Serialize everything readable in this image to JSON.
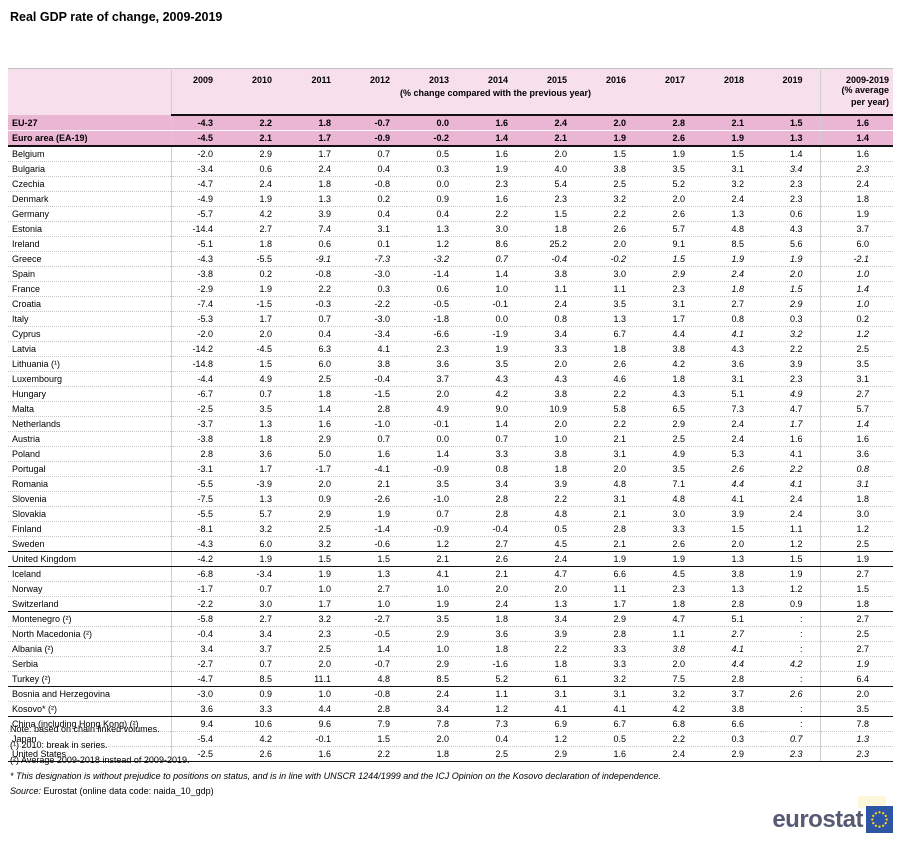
{
  "title": "Real GDP rate of change, 2009-2019",
  "chart_data": {
    "type": "table",
    "title": "Real GDP rate of change, 2009-2019",
    "unit_note": "(% change compared with the previous year)",
    "avg_header": "2009-2019",
    "avg_subheader": "(% average\nper year)",
    "years": [
      "2009",
      "2010",
      "2011",
      "2012",
      "2013",
      "2014",
      "2015",
      "2016",
      "2017",
      "2018",
      "2019"
    ],
    "rows": [
      {
        "name": "EU-27",
        "values": [
          "-4.3",
          "2.2",
          "1.8",
          "-0.7",
          "0.0",
          "1.6",
          "2.4",
          "2.0",
          "2.8",
          "2.1",
          "1.5",
          "1.6"
        ],
        "highlight": true,
        "bold": true
      },
      {
        "name": "Euro area (EA-19)",
        "values": [
          "-4.5",
          "2.1",
          "1.7",
          "-0.9",
          "-0.2",
          "1.4",
          "2.1",
          "1.9",
          "2.6",
          "1.9",
          "1.3",
          "1.4"
        ],
        "highlight": true,
        "bold": true,
        "sep_after": true
      },
      {
        "name": "Belgium",
        "values": [
          "-2.0",
          "2.9",
          "1.7",
          "0.7",
          "0.5",
          "1.6",
          "2.0",
          "1.5",
          "1.9",
          "1.5",
          "1.4",
          "1.6"
        ]
      },
      {
        "name": "Bulgaria",
        "values": [
          "-3.4",
          "0.6",
          "2.4",
          "0.4",
          "0.3",
          "1.9",
          "4.0",
          "3.8",
          "3.5",
          "3.1",
          "3.4",
          "2.3"
        ],
        "italics": [
          10,
          11
        ]
      },
      {
        "name": "Czechia",
        "values": [
          "-4.7",
          "2.4",
          "1.8",
          "-0.8",
          "0.0",
          "2.3",
          "5.4",
          "2.5",
          "5.2",
          "3.2",
          "2.3",
          "2.4"
        ]
      },
      {
        "name": "Denmark",
        "values": [
          "-4.9",
          "1.9",
          "1.3",
          "0.2",
          "0.9",
          "1.6",
          "2.3",
          "3.2",
          "2.0",
          "2.4",
          "2.3",
          "1.8"
        ]
      },
      {
        "name": "Germany",
        "values": [
          "-5.7",
          "4.2",
          "3.9",
          "0.4",
          "0.4",
          "2.2",
          "1.5",
          "2.2",
          "2.6",
          "1.3",
          "0.6",
          "1.9"
        ]
      },
      {
        "name": "Estonia",
        "values": [
          "-14.4",
          "2.7",
          "7.4",
          "3.1",
          "1.3",
          "3.0",
          "1.8",
          "2.6",
          "5.7",
          "4.8",
          "4.3",
          "3.7"
        ]
      },
      {
        "name": "Ireland",
        "values": [
          "-5.1",
          "1.8",
          "0.6",
          "0.1",
          "1.2",
          "8.6",
          "25.2",
          "2.0",
          "9.1",
          "8.5",
          "5.6",
          "6.0"
        ]
      },
      {
        "name": "Greece",
        "values": [
          "-4.3",
          "-5.5",
          "-9.1",
          "-7.3",
          "-3.2",
          "0.7",
          "-0.4",
          "-0.2",
          "1.5",
          "1.9",
          "1.9",
          "-2.1"
        ],
        "italics": [
          2,
          3,
          4,
          5,
          6,
          7,
          8,
          9,
          10,
          11
        ]
      },
      {
        "name": "Spain",
        "values": [
          "-3.8",
          "0.2",
          "-0.8",
          "-3.0",
          "-1.4",
          "1.4",
          "3.8",
          "3.0",
          "2.9",
          "2.4",
          "2.0",
          "1.0"
        ],
        "italics": [
          8,
          9,
          10,
          11
        ]
      },
      {
        "name": "France",
        "values": [
          "-2.9",
          "1.9",
          "2.2",
          "0.3",
          "0.6",
          "1.0",
          "1.1",
          "1.1",
          "2.3",
          "1.8",
          "1.5",
          "1.4"
        ],
        "italics": [
          9,
          10,
          11
        ]
      },
      {
        "name": "Croatia",
        "values": [
          "-7.4",
          "-1.5",
          "-0.3",
          "-2.2",
          "-0.5",
          "-0.1",
          "2.4",
          "3.5",
          "3.1",
          "2.7",
          "2.9",
          "1.0"
        ],
        "italics": [
          10,
          11
        ]
      },
      {
        "name": "Italy",
        "values": [
          "-5.3",
          "1.7",
          "0.7",
          "-3.0",
          "-1.8",
          "0.0",
          "0.8",
          "1.3",
          "1.7",
          "0.8",
          "0.3",
          "0.2"
        ]
      },
      {
        "name": "Cyprus",
        "values": [
          "-2.0",
          "2.0",
          "0.4",
          "-3.4",
          "-6.6",
          "-1.9",
          "3.4",
          "6.7",
          "4.4",
          "4.1",
          "3.2",
          "1.2"
        ],
        "italics": [
          9,
          10,
          11
        ]
      },
      {
        "name": "Latvia",
        "values": [
          "-14.2",
          "-4.5",
          "6.3",
          "4.1",
          "2.3",
          "1.9",
          "3.3",
          "1.8",
          "3.8",
          "4.3",
          "2.2",
          "2.5"
        ]
      },
      {
        "name": "Lithuania (¹)",
        "values": [
          "-14.8",
          "1.5",
          "6.0",
          "3.8",
          "3.6",
          "3.5",
          "2.0",
          "2.6",
          "4.2",
          "3.6",
          "3.9",
          "3.5"
        ]
      },
      {
        "name": "Luxembourg",
        "values": [
          "-4.4",
          "4.9",
          "2.5",
          "-0.4",
          "3.7",
          "4.3",
          "4.3",
          "4.6",
          "1.8",
          "3.1",
          "2.3",
          "3.1"
        ]
      },
      {
        "name": "Hungary",
        "values": [
          "-6.7",
          "0.7",
          "1.8",
          "-1.5",
          "2.0",
          "4.2",
          "3.8",
          "2.2",
          "4.3",
          "5.1",
          "4.9",
          "2.7"
        ],
        "italics": [
          10,
          11
        ]
      },
      {
        "name": "Malta",
        "values": [
          "-2.5",
          "3.5",
          "1.4",
          "2.8",
          "4.9",
          "9.0",
          "10.9",
          "5.8",
          "6.5",
          "7.3",
          "4.7",
          "5.7"
        ]
      },
      {
        "name": "Netherlands",
        "values": [
          "-3.7",
          "1.3",
          "1.6",
          "-1.0",
          "-0.1",
          "1.4",
          "2.0",
          "2.2",
          "2.9",
          "2.4",
          "1.7",
          "1.4"
        ],
        "italics": [
          10,
          11
        ]
      },
      {
        "name": "Austria",
        "values": [
          "-3.8",
          "1.8",
          "2.9",
          "0.7",
          "0.0",
          "0.7",
          "1.0",
          "2.1",
          "2.5",
          "2.4",
          "1.6",
          "1.6"
        ]
      },
      {
        "name": "Poland",
        "values": [
          "2.8",
          "3.6",
          "5.0",
          "1.6",
          "1.4",
          "3.3",
          "3.8",
          "3.1",
          "4.9",
          "5.3",
          "4.1",
          "3.6"
        ]
      },
      {
        "name": "Portugal",
        "values": [
          "-3.1",
          "1.7",
          "-1.7",
          "-4.1",
          "-0.9",
          "0.8",
          "1.8",
          "2.0",
          "3.5",
          "2.6",
          "2.2",
          "0.8"
        ],
        "italics": [
          9,
          10,
          11
        ]
      },
      {
        "name": "Romania",
        "values": [
          "-5.5",
          "-3.9",
          "2.0",
          "2.1",
          "3.5",
          "3.4",
          "3.9",
          "4.8",
          "7.1",
          "4.4",
          "4.1",
          "3.1"
        ],
        "italics": [
          9,
          10,
          11
        ]
      },
      {
        "name": "Slovenia",
        "values": [
          "-7.5",
          "1.3",
          "0.9",
          "-2.6",
          "-1.0",
          "2.8",
          "2.2",
          "3.1",
          "4.8",
          "4.1",
          "2.4",
          "1.8"
        ]
      },
      {
        "name": "Slovakia",
        "values": [
          "-5.5",
          "5.7",
          "2.9",
          "1.9",
          "0.7",
          "2.8",
          "4.8",
          "2.1",
          "3.0",
          "3.9",
          "2.4",
          "3.0"
        ]
      },
      {
        "name": "Finland",
        "values": [
          "-8.1",
          "3.2",
          "2.5",
          "-1.4",
          "-0.9",
          "-0.4",
          "0.5",
          "2.8",
          "3.3",
          "1.5",
          "1.1",
          "1.2"
        ]
      },
      {
        "name": "Sweden",
        "values": [
          "-4.3",
          "6.0",
          "3.2",
          "-0.6",
          "1.2",
          "2.7",
          "4.5",
          "2.1",
          "2.6",
          "2.0",
          "1.2",
          "2.5"
        ],
        "sep_after": true
      },
      {
        "name": "United Kingdom",
        "values": [
          "-4.2",
          "1.9",
          "1.5",
          "1.5",
          "2.1",
          "2.6",
          "2.4",
          "1.9",
          "1.9",
          "1.3",
          "1.5",
          "1.9"
        ],
        "sep_after": true
      },
      {
        "name": "Iceland",
        "values": [
          "-6.8",
          "-3.4",
          "1.9",
          "1.3",
          "4.1",
          "2.1",
          "4.7",
          "6.6",
          "4.5",
          "3.8",
          "1.9",
          "2.7"
        ]
      },
      {
        "name": "Norway",
        "values": [
          "-1.7",
          "0.7",
          "1.0",
          "2.7",
          "1.0",
          "2.0",
          "2.0",
          "1.1",
          "2.3",
          "1.3",
          "1.2",
          "1.5"
        ]
      },
      {
        "name": "Switzerland",
        "values": [
          "-2.2",
          "3.0",
          "1.7",
          "1.0",
          "1.9",
          "2.4",
          "1.3",
          "1.7",
          "1.8",
          "2.8",
          "0.9",
          "1.8"
        ],
        "sep_after": true
      },
      {
        "name": "Montenegro (²)",
        "values": [
          "-5.8",
          "2.7",
          "3.2",
          "-2.7",
          "3.5",
          "1.8",
          "3.4",
          "2.9",
          "4.7",
          "5.1",
          ":",
          "2.7"
        ]
      },
      {
        "name": "North Macedonia (²)",
        "values": [
          "-0.4",
          "3.4",
          "2.3",
          "-0.5",
          "2.9",
          "3.6",
          "3.9",
          "2.8",
          "1.1",
          "2.7",
          ":",
          "2.5"
        ],
        "italics": [
          9
        ]
      },
      {
        "name": "Albania (²)",
        "values": [
          "3.4",
          "3.7",
          "2.5",
          "1.4",
          "1.0",
          "1.8",
          "2.2",
          "3.3",
          "3.8",
          "4.1",
          ":",
          "2.7"
        ],
        "italics": [
          8,
          9
        ]
      },
      {
        "name": "Serbia",
        "values": [
          "-2.7",
          "0.7",
          "2.0",
          "-0.7",
          "2.9",
          "-1.6",
          "1.8",
          "3.3",
          "2.0",
          "4.4",
          "4.2",
          "1.9"
        ],
        "italics": [
          9,
          10,
          11
        ]
      },
      {
        "name": "Turkey (²)",
        "values": [
          "-4.7",
          "8.5",
          "11.1",
          "4.8",
          "8.5",
          "5.2",
          "6.1",
          "3.2",
          "7.5",
          "2.8",
          ":",
          "6.4"
        ],
        "sep_after": true
      },
      {
        "name": "Bosnia and Herzegovina",
        "values": [
          "-3.0",
          "0.9",
          "1.0",
          "-0.8",
          "2.4",
          "1.1",
          "3.1",
          "3.1",
          "3.2",
          "3.7",
          "2.6",
          "2.0"
        ],
        "italics": [
          10
        ]
      },
      {
        "name": "Kosovo* (²)",
        "values": [
          "3.6",
          "3.3",
          "4.4",
          "2.8",
          "3.4",
          "1.2",
          "4.1",
          "4.1",
          "4.2",
          "3.8",
          ":",
          "3.5"
        ],
        "sep_after": true
      },
      {
        "name": "China (including Hong Kong) (²)",
        "values": [
          "9.4",
          "10.6",
          "9.6",
          "7.9",
          "7.8",
          "7.3",
          "6.9",
          "6.7",
          "6.8",
          "6.6",
          ":",
          "7.8"
        ]
      },
      {
        "name": "Japan",
        "values": [
          "-5.4",
          "4.2",
          "-0.1",
          "1.5",
          "2.0",
          "0.4",
          "1.2",
          "0.5",
          "2.2",
          "0.3",
          "0.7",
          "1.3"
        ],
        "italics": [
          10,
          11
        ]
      },
      {
        "name": "United States",
        "values": [
          "-2.5",
          "2.6",
          "1.6",
          "2.2",
          "1.8",
          "2.5",
          "2.9",
          "1.6",
          "2.4",
          "2.9",
          "2.3",
          "2.3"
        ],
        "italics": [
          10,
          11
        ],
        "sep_after": true
      }
    ]
  },
  "notes": {
    "line1": "Note: based on chain linked volumes.",
    "line2": "(¹) 2010: break in series.",
    "line3": "(²) Average 2009-2018 instead of 2009-2019.",
    "line4": "* This designation is without prejudice to positions on status, and is in line with UNSCR 1244/1999 and the ICJ Opinion on the Kosovo declaration of independence.",
    "source_label": "Source:",
    "source_text": " Eurostat (online data code: naida_10_gdp)"
  },
  "footer": {
    "logo_text": "eurostat"
  },
  "colors": {
    "header_band": "#f7e0ec",
    "highlight_row": "#eab6d3",
    "logo_blue": "#2e55a3",
    "star_yellow": "#ffd617",
    "logo_text_color": "#565a73"
  }
}
